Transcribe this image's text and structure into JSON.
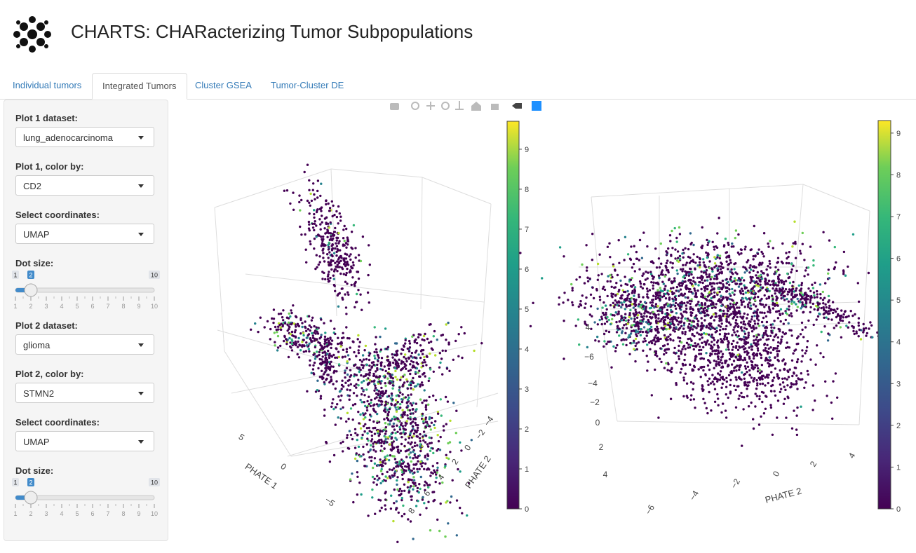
{
  "header": {
    "title": "CHARTS: CHARacterizing Tumor Subpopulations"
  },
  "tabs": [
    "Individual tumors",
    "Integrated Tumors",
    "Cluster GSEA",
    "Tumor-Cluster DE"
  ],
  "sidebar": {
    "groups": [
      {
        "label": "Plot 1 dataset:",
        "value": "lung_adenocarcinoma"
      },
      {
        "label": "Plot 1, color by:",
        "value": "CD2"
      },
      {
        "label": "Select coordinates:",
        "value": "UMAP"
      },
      {
        "label": "Dot size:",
        "slider": {
          "min": 1,
          "max": 10,
          "value": 2,
          "ticks": [
            1,
            2,
            3,
            4,
            5,
            6,
            7,
            8,
            9,
            10
          ]
        }
      },
      {
        "label": "Plot 2 dataset:",
        "value": "glioma"
      },
      {
        "label": "Plot 2, color by:",
        "value": "STMN2"
      },
      {
        "label": "Select coordinates:",
        "value": "UMAP"
      },
      {
        "label": "Dot size:",
        "slider": {
          "min": 1,
          "max": 10,
          "value": 2,
          "ticks": [
            1,
            2,
            3,
            4,
            5,
            6,
            7,
            8,
            9,
            10
          ]
        }
      }
    ]
  },
  "plots": [
    {
      "colorbar": {
        "range": [
          0,
          9.7
        ],
        "ticks": [
          0,
          1,
          2,
          3,
          4,
          5,
          6,
          7,
          8,
          9
        ]
      },
      "axes": [
        {
          "title": "PHATE 1",
          "ticks": [
            5,
            0,
            {
              "value": -5,
              "label": "−5"
            }
          ]
        },
        {
          "title": "PHATE 2",
          "ticks": [
            {
              "value": -4,
              "label": "−4"
            },
            {
              "value": -2,
              "label": "−2"
            },
            0,
            2,
            4,
            6,
            8
          ]
        }
      ]
    },
    {
      "colorbar": {
        "range": [
          0,
          9.3
        ],
        "ticks": [
          0,
          1,
          2,
          3,
          4,
          5,
          6,
          7,
          8,
          9
        ]
      },
      "axes": [
        {
          "ticks": [
            4,
            {
              "value": -6,
              "label": "−6"
            },
            {
              "value": -4,
              "label": "−4"
            },
            {
              "value": -2,
              "label": "−2"
            },
            0,
            2,
            4
          ]
        },
        {
          "title": "PHATE 2",
          "ticks": [
            {
              "value": -6,
              "label": "−6"
            },
            {
              "value": -4,
              "label": "−4"
            },
            {
              "value": -2,
              "label": "−2"
            },
            0,
            2,
            4
          ]
        }
      ]
    }
  ]
}
